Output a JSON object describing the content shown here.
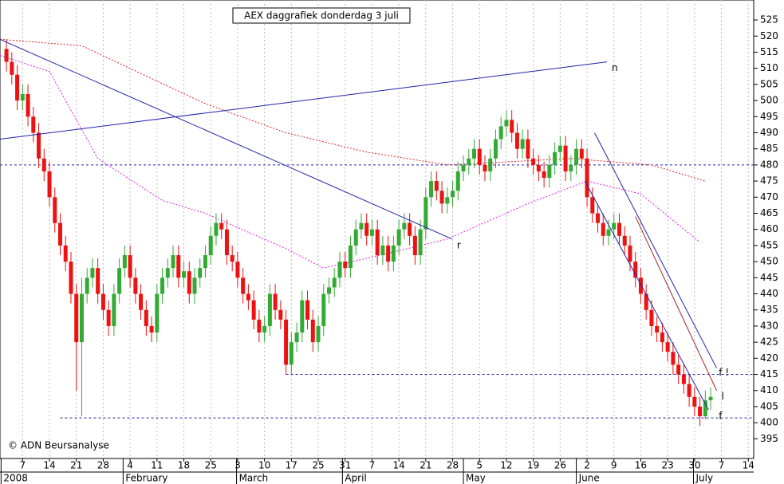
{
  "chart_data": {
    "type": "candlestick",
    "title": "AEX daggrafiek donderdag 3 juli",
    "copyright": "© ADN Beursanalyse",
    "up_color": "#33aa33",
    "down_color": "#ee1111",
    "x": [
      0,
      1,
      2,
      3,
      4,
      5,
      6,
      7,
      8,
      9,
      10,
      11,
      12,
      13,
      14,
      15,
      16,
      17,
      18,
      19,
      20,
      21,
      22,
      23,
      24,
      25,
      26,
      27,
      28,
      29,
      30,
      31,
      32,
      33,
      34,
      35,
      36,
      37,
      38,
      39,
      40,
      41,
      42,
      43,
      44,
      45,
      46,
      47,
      48,
      49,
      50,
      51,
      52,
      53,
      54,
      55,
      56,
      57,
      58,
      59,
      60,
      61,
      62,
      63,
      64,
      65,
      66,
      67,
      68,
      69,
      70,
      71,
      72,
      73,
      74,
      75,
      76,
      77,
      78,
      79,
      80,
      81,
      82,
      83,
      84,
      85,
      86,
      87,
      88,
      89,
      90,
      91,
      92,
      93,
      94,
      95,
      96,
      97,
      98,
      99,
      100,
      101,
      102,
      103,
      104,
      105,
      106,
      107,
      108,
      109,
      110,
      111,
      112,
      113,
      114,
      115,
      116,
      117,
      118,
      119,
      120,
      121,
      122,
      123,
      124,
      125,
      126,
      127,
      128,
      129,
      130,
      131
    ],
    "open": [
      516,
      512,
      508,
      500,
      502,
      495,
      490,
      482,
      478,
      470,
      462,
      455,
      450,
      440,
      425,
      440,
      445,
      448,
      440,
      435,
      430,
      440,
      448,
      452,
      445,
      440,
      435,
      430,
      428,
      440,
      445,
      448,
      452,
      445,
      447,
      440,
      445,
      448,
      452,
      458,
      462,
      460,
      452,
      450,
      445,
      440,
      438,
      432,
      428,
      430,
      440,
      435,
      432,
      418,
      425,
      428,
      438,
      432,
      425,
      430,
      440,
      442,
      445,
      450,
      448,
      455,
      460,
      462,
      458,
      460,
      452,
      455,
      450,
      455,
      460,
      462,
      458,
      452,
      460,
      470,
      475,
      472,
      468,
      470,
      472,
      478,
      480,
      482,
      485,
      480,
      478,
      482,
      488,
      492,
      494,
      490,
      485,
      488,
      482,
      480,
      478,
      476,
      480,
      484,
      486,
      478,
      480,
      485,
      482,
      470,
      465,
      462,
      458,
      460,
      462,
      458,
      455,
      450,
      445,
      440,
      435,
      430,
      428,
      425,
      422,
      418,
      415,
      412,
      408,
      405,
      402,
      407
    ],
    "high": [
      519,
      515,
      511,
      505,
      505,
      498,
      493,
      485,
      481,
      473,
      465,
      458,
      453,
      443,
      445,
      448,
      451,
      451,
      443,
      438,
      443,
      451,
      455,
      455,
      448,
      443,
      438,
      433,
      443,
      448,
      451,
      455,
      455,
      450,
      450,
      448,
      451,
      455,
      461,
      465,
      465,
      463,
      455,
      453,
      448,
      443,
      441,
      435,
      433,
      443,
      443,
      438,
      435,
      428,
      431,
      441,
      441,
      435,
      433,
      443,
      445,
      448,
      453,
      453,
      458,
      463,
      465,
      465,
      463,
      463,
      458,
      458,
      458,
      463,
      465,
      465,
      461,
      463,
      473,
      478,
      478,
      475,
      473,
      475,
      481,
      483,
      485,
      488,
      488,
      483,
      485,
      491,
      495,
      497,
      497,
      493,
      491,
      491,
      485,
      483,
      481,
      483,
      487,
      489,
      489,
      483,
      488,
      488,
      485,
      473,
      468,
      465,
      463,
      465,
      465,
      461,
      458,
      453,
      448,
      443,
      438,
      433,
      431,
      428,
      425,
      421,
      418,
      415,
      411,
      408,
      410,
      411
    ],
    "low": [
      509,
      505,
      497,
      497,
      492,
      487,
      479,
      475,
      467,
      459,
      452,
      447,
      437,
      410,
      402,
      437,
      442,
      437,
      432,
      427,
      427,
      437,
      445,
      442,
      437,
      432,
      427,
      425,
      425,
      437,
      442,
      445,
      442,
      442,
      437,
      437,
      442,
      445,
      449,
      455,
      457,
      449,
      447,
      442,
      437,
      435,
      429,
      425,
      425,
      427,
      432,
      429,
      415,
      415,
      422,
      425,
      429,
      422,
      422,
      427,
      437,
      439,
      442,
      445,
      445,
      452,
      457,
      455,
      455,
      449,
      449,
      447,
      447,
      452,
      457,
      455,
      449,
      449,
      457,
      467,
      469,
      465,
      465,
      467,
      469,
      475,
      477,
      479,
      477,
      475,
      475,
      479,
      485,
      489,
      487,
      482,
      482,
      479,
      477,
      475,
      473,
      473,
      477,
      481,
      475,
      475,
      477,
      479,
      467,
      462,
      459,
      455,
      455,
      457,
      455,
      452,
      447,
      442,
      437,
      432,
      427,
      425,
      422,
      419,
      415,
      412,
      409,
      405,
      402,
      399,
      401,
      404
    ],
    "close": [
      512,
      508,
      500,
      502,
      495,
      490,
      482,
      478,
      470,
      462,
      455,
      450,
      440,
      425,
      440,
      445,
      448,
      440,
      435,
      430,
      440,
      448,
      452,
      445,
      440,
      435,
      430,
      428,
      440,
      445,
      448,
      452,
      445,
      447,
      440,
      445,
      448,
      452,
      458,
      462,
      460,
      452,
      450,
      445,
      440,
      438,
      432,
      428,
      430,
      440,
      435,
      432,
      418,
      425,
      428,
      438,
      432,
      425,
      430,
      440,
      442,
      445,
      450,
      448,
      455,
      460,
      462,
      458,
      460,
      452,
      455,
      450,
      455,
      460,
      462,
      458,
      452,
      460,
      470,
      475,
      472,
      468,
      470,
      472,
      478,
      480,
      482,
      485,
      480,
      478,
      482,
      488,
      492,
      494,
      490,
      485,
      488,
      482,
      480,
      478,
      476,
      480,
      484,
      486,
      478,
      480,
      485,
      482,
      470,
      465,
      462,
      458,
      460,
      462,
      458,
      455,
      450,
      445,
      440,
      435,
      430,
      428,
      425,
      422,
      418,
      415,
      412,
      408,
      405,
      402,
      407,
      408
    ],
    "moving_averages": [
      {
        "color": "#dd2222",
        "x": [
          -1.2,
          14,
          37,
          52,
          67,
          82,
          105,
          120,
          130
        ],
        "values": [
          519,
          517,
          499,
          490,
          484,
          480,
          482,
          480,
          475
        ]
      },
      {
        "color": "#dd22dd",
        "x": [
          -1.2,
          8,
          17,
          29,
          37,
          52,
          59,
          67,
          82,
          97,
          108,
          118,
          129
        ],
        "values": [
          514,
          509,
          482,
          469,
          465,
          454,
          448,
          451,
          457,
          468,
          475,
          471,
          456
        ]
      }
    ],
    "trendlines": [
      {
        "color": "#2222aa",
        "x": [
          -1.2,
          111.7
        ],
        "values": [
          488,
          512
        ],
        "label": "n"
      },
      {
        "color": "#2222aa",
        "x": [
          -1.2,
          82.9
        ],
        "values": [
          519,
          457
        ],
        "label": "r"
      },
      {
        "color": "#2222aa",
        "x": [
          109.4,
          132.1
        ],
        "values": [
          490,
          417
        ]
      },
      {
        "color": "#2222aa",
        "x": [
          107.6,
          130.6
        ],
        "values": [
          475,
          404
        ]
      },
      {
        "color": "#aa2222",
        "x": [
          117,
          132.1
        ],
        "values": [
          464,
          410
        ],
        "label": "l"
      }
    ],
    "levels": [
      {
        "value": 480,
        "from": -1.2
      },
      {
        "value": 415,
        "from": 52,
        "label": "f !"
      },
      {
        "value": 401.5,
        "from": 10,
        "label": "f"
      }
    ],
    "xlim": [
      -1.2,
      139
    ],
    "ylim": [
      388.9,
      531.2
    ],
    "yticks": [
      395,
      400,
      405,
      410,
      415,
      420,
      425,
      430,
      435,
      440,
      445,
      450,
      455,
      460,
      465,
      470,
      475,
      480,
      485,
      490,
      495,
      500,
      505,
      510,
      515,
      520,
      525
    ],
    "xticks": [
      {
        "value": 3,
        "label": "7"
      },
      {
        "value": 8,
        "label": "14"
      },
      {
        "value": 13,
        "label": "21"
      },
      {
        "value": 18,
        "label": "28"
      },
      {
        "value": 23,
        "label": "4"
      },
      {
        "value": 28,
        "label": "11"
      },
      {
        "value": 33,
        "label": "18"
      },
      {
        "value": 38,
        "label": "25"
      },
      {
        "value": 43,
        "label": "3"
      },
      {
        "value": 48,
        "label": "10"
      },
      {
        "value": 53,
        "label": "17"
      },
      {
        "value": 58,
        "label": "25"
      },
      {
        "value": 63,
        "label": "31"
      },
      {
        "value": 68,
        "label": "7"
      },
      {
        "value": 73,
        "label": "14"
      },
      {
        "value": 78,
        "label": "21"
      },
      {
        "value": 83,
        "label": "28"
      },
      {
        "value": 88,
        "label": "5"
      },
      {
        "value": 93,
        "label": "12"
      },
      {
        "value": 98,
        "label": "19"
      },
      {
        "value": 103,
        "label": "26"
      },
      {
        "value": 108,
        "label": "2"
      },
      {
        "value": 113,
        "label": "9"
      },
      {
        "value": 118,
        "label": "16"
      },
      {
        "value": 123,
        "label": "23"
      },
      {
        "value": 128,
        "label": "30"
      },
      {
        "value": 133,
        "label": "7"
      },
      {
        "value": 138,
        "label": "14"
      }
    ],
    "month_ticks": [
      {
        "value": -1,
        "label": "2008"
      },
      {
        "value": 21.7,
        "label": "February"
      },
      {
        "value": 42.8,
        "label": "March"
      },
      {
        "value": 62.5,
        "label": "April"
      },
      {
        "value": 85,
        "label": "May"
      },
      {
        "value": 106,
        "label": "June"
      },
      {
        "value": 127.8,
        "label": "July"
      }
    ],
    "grid": true
  }
}
